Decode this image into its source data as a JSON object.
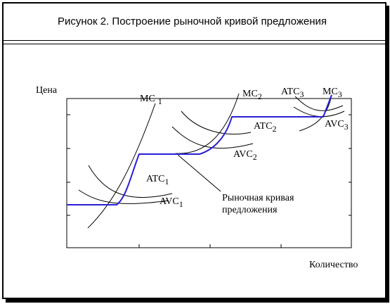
{
  "title": "Рисунок 2. Построение рыночной кривой предложения",
  "axes": {
    "y_label": "Цена",
    "x_label": "Количество"
  },
  "labels": {
    "mc1": "MC",
    "mc1_sub": "1",
    "mc2": "MC",
    "mc2_sub": "2",
    "mc3": "MC",
    "mc3_sub": "3",
    "atc1": "ATC",
    "atc1_sub": "1",
    "atc2": "ATC",
    "atc2_sub": "2",
    "atc3": "ATC",
    "atc3_sub": "3",
    "avc1": "AVC",
    "avc1_sub": "1",
    "avc2": "AVC",
    "avc2_sub": "2",
    "avc3": "AVC",
    "avc3_sub": "3",
    "market_line1": "Рыночная кривая",
    "market_line2": "предложения"
  },
  "colors": {
    "supply": "#2a1fd6",
    "curves": "#000000"
  }
}
